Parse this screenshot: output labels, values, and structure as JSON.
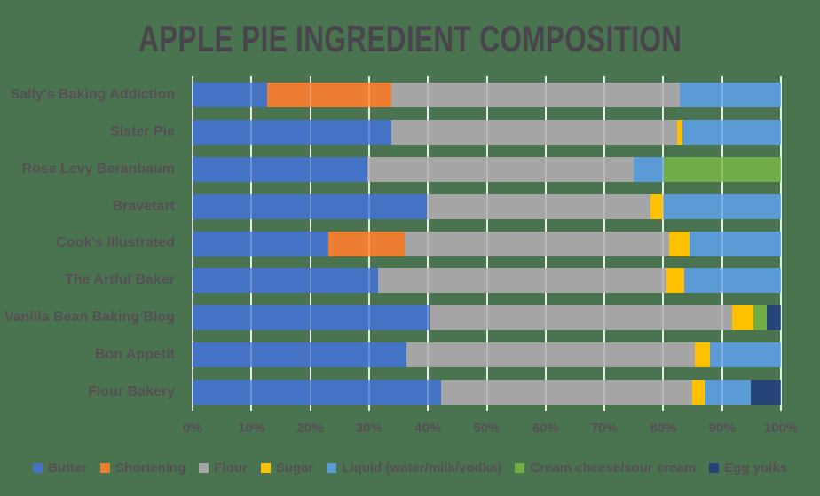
{
  "page": {
    "background_color": "#4A7450",
    "title_color": "#48464C",
    "text_color": "#574F55",
    "gridline_color": "#E4E7E2",
    "axis_line_color": "#C9CFC9"
  },
  "chart_data": {
    "type": "bar",
    "orientation": "horizontal",
    "stacked": true,
    "stack_unit": "percent_of_total",
    "title": "APPLE PIE INGREDIENT COMPOSITION",
    "categories": [
      "Sally's Baking Addiction",
      "Sister Pie",
      "Rose Levy Beranbaum",
      "Bravetart",
      "Cook's Illustrated",
      "The Artful Baker",
      "Vanilla Bean Baking Blog",
      "Bon Appetit",
      "Flour Bakery"
    ],
    "series": [
      {
        "name": "Butter",
        "color": "#4472C4",
        "values": [
          12.7,
          33.8,
          29.7,
          39.8,
          23.1,
          31.5,
          40.2,
          36.3,
          42.2
        ]
      },
      {
        "name": "Shortening",
        "color": "#ED7D31",
        "values": [
          21.1,
          0,
          0,
          0,
          13.0,
          0,
          0,
          0,
          0
        ]
      },
      {
        "name": "Flour",
        "color": "#A5A5A5",
        "values": [
          49.0,
          48.5,
          45.2,
          38.1,
          44.9,
          49.0,
          51.5,
          49.0,
          42.7
        ]
      },
      {
        "name": "Sugar",
        "color": "#FFC000",
        "values": [
          0,
          1.0,
          0,
          2.1,
          3.4,
          3.0,
          3.6,
          2.7,
          2.1
        ]
      },
      {
        "name": "Liquid (water/milk/vodka)",
        "color": "#5B9BD5",
        "values": [
          17.2,
          16.7,
          5.2,
          20.0,
          15.6,
          16.5,
          0,
          12.0,
          7.9
        ]
      },
      {
        "name": "Cream cheese/sour cream",
        "color": "#70AD47",
        "values": [
          0,
          0,
          19.9,
          0,
          0,
          0,
          2.3,
          0,
          0
        ]
      },
      {
        "name": "Egg yolks",
        "color": "#264478",
        "values": [
          0,
          0,
          0,
          0,
          0,
          0,
          2.4,
          0,
          5.1
        ]
      }
    ],
    "x_axis": {
      "min": 0,
      "max": 100,
      "tick_labels": [
        "0%",
        "10%",
        "20%",
        "30%",
        "40%",
        "50%",
        "60%",
        "70%",
        "80%",
        "90%",
        "100%"
      ]
    },
    "legend_position": "bottom",
    "gridlines": "vertical"
  }
}
